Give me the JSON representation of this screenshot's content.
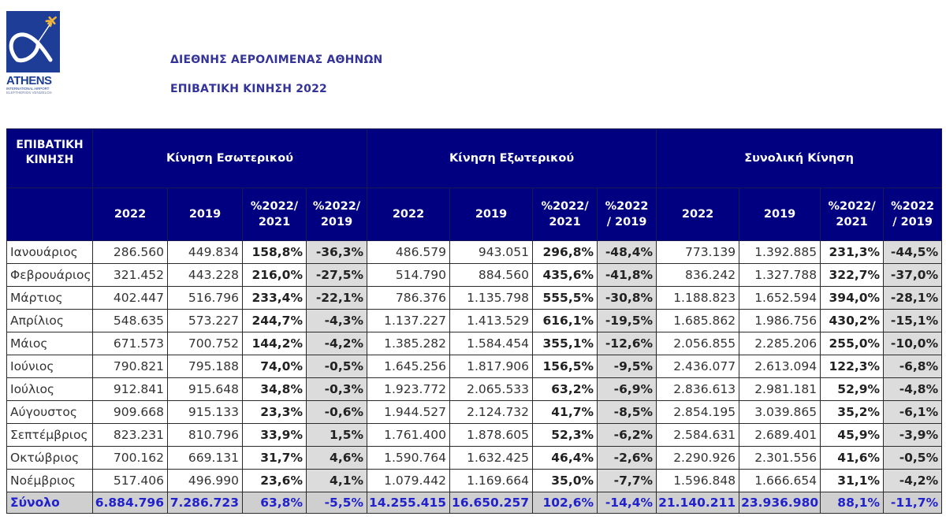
{
  "logo": {
    "name": "ATHENS",
    "line1": "INTERNATIONAL AIRPORT",
    "line2": "ELEFTHERIOS VENIZELOS",
    "brand_color": "#1d3d97",
    "accent_color": "#f0b43c"
  },
  "header": {
    "title": "ΔΙΕΘΝΗΣ ΑΕΡΟΛΙΜΕΝΑΣ ΑΘΗΝΩΝ",
    "subtitle": "ΕΠΙΒΑΤΙΚΗ ΚΙΝΗΣΗ 2022"
  },
  "table": {
    "corner_label_1": "ΕΠΙΒΑΤΙΚΗ",
    "corner_label_2": "ΚΙΝΗΣΗ",
    "groups": [
      {
        "label": "Κίνηση Εσωτερικού",
        "columns": [
          {
            "l1": "2022",
            "l2": ""
          },
          {
            "l1": "2019",
            "l2": ""
          },
          {
            "l1": "%2022/",
            "l2": "2021"
          },
          {
            "l1": "%2022/",
            "l2": "2019"
          }
        ]
      },
      {
        "label": "Κίνηση Εξωτερικού",
        "columns": [
          {
            "l1": "2022",
            "l2": ""
          },
          {
            "l1": "2019",
            "l2": ""
          },
          {
            "l1": "%2022/",
            "l2": "2021"
          },
          {
            "l1": "%2022",
            "l2": "/ 2019"
          }
        ]
      },
      {
        "label": "Συνολική Κίνηση",
        "columns": [
          {
            "l1": "2022",
            "l2": ""
          },
          {
            "l1": "2019",
            "l2": ""
          },
          {
            "l1": "%2022/",
            "l2": "2021"
          },
          {
            "l1": "%2022",
            "l2": "/ 2019"
          }
        ]
      }
    ],
    "rows": [
      {
        "month": "Ιανουάριος",
        "values": [
          "286.560",
          "449.834",
          "158,8%",
          "-36,3%",
          "486.579",
          "943.051",
          "296,8%",
          "-48,4%",
          "773.139",
          "1.392.885",
          "231,3%",
          "-44,5%"
        ]
      },
      {
        "month": "Φεβρουάριος",
        "values": [
          "321.452",
          "443.228",
          "216,0%",
          "-27,5%",
          "514.790",
          "884.560",
          "435,6%",
          "-41,8%",
          "836.242",
          "1.327.788",
          "322,7%",
          "-37,0%"
        ]
      },
      {
        "month": "Μάρτιος",
        "values": [
          "402.447",
          "516.796",
          "233,4%",
          "-22,1%",
          "786.376",
          "1.135.798",
          "555,5%",
          "-30,8%",
          "1.188.823",
          "1.652.594",
          "394,0%",
          "-28,1%"
        ]
      },
      {
        "month": "Απρίλιος",
        "values": [
          "548.635",
          "573.227",
          "244,7%",
          "-4,3%",
          "1.137.227",
          "1.413.529",
          "616,1%",
          "-19,5%",
          "1.685.862",
          "1.986.756",
          "430,2%",
          "-15,1%"
        ]
      },
      {
        "month": "Μάιος",
        "values": [
          "671.573",
          "700.752",
          "144,2%",
          "-4,2%",
          "1.385.282",
          "1.584.454",
          "355,1%",
          "-12,6%",
          "2.056.855",
          "2.285.206",
          "255,0%",
          "-10,0%"
        ]
      },
      {
        "month": "Ιούνιος",
        "values": [
          "790.821",
          "795.188",
          "74,0%",
          "-0,5%",
          "1.645.256",
          "1.817.906",
          "156,5%",
          "-9,5%",
          "2.436.077",
          "2.613.094",
          "122,3%",
          "-6,8%"
        ]
      },
      {
        "month": "Ιούλιος",
        "values": [
          "912.841",
          "915.648",
          "34,8%",
          "-0,3%",
          "1.923.772",
          "2.065.533",
          "63,2%",
          "-6,9%",
          "2.836.613",
          "2.981.181",
          "52,9%",
          "-4,8%"
        ]
      },
      {
        "month": "Αύγουστος",
        "values": [
          "909.668",
          "915.133",
          "23,3%",
          "-0,6%",
          "1.944.527",
          "2.124.732",
          "41,7%",
          "-8,5%",
          "2.854.195",
          "3.039.865",
          "35,2%",
          "-6,1%"
        ]
      },
      {
        "month": "Σεπτέμβριος",
        "values": [
          "823.231",
          "810.796",
          "33,9%",
          "1,5%",
          "1.761.400",
          "1.878.605",
          "52,3%",
          "-6,2%",
          "2.584.631",
          "2.689.401",
          "45,9%",
          "-3,9%"
        ]
      },
      {
        "month": "Οκτώβριος",
        "values": [
          "700.162",
          "669.131",
          "31,7%",
          "4,6%",
          "1.590.764",
          "1.632.425",
          "46,4%",
          "-2,6%",
          "2.290.926",
          "2.301.556",
          "41,6%",
          "-0,5%"
        ]
      },
      {
        "month": "Νοέμβριος",
        "values": [
          "517.406",
          "496.990",
          "23,6%",
          "4,1%",
          "1.079.442",
          "1.169.664",
          "35,0%",
          "-7,7%",
          "1.596.848",
          "1.666.654",
          "31,1%",
          "-4,2%"
        ]
      }
    ],
    "total": {
      "month": "Σύνολο",
      "values": [
        "6.884.796",
        "7.286.723",
        "63,8%",
        "-5,5%",
        "14.255.415",
        "16.650.257",
        "102,6%",
        "-14,4%",
        "21.140.211",
        "23.936.980",
        "88,1%",
        "-11,7%"
      ]
    },
    "colors": {
      "header_bg": "#000080",
      "header_text": "#ffffff",
      "total_text": "#2222cc",
      "total_bg": "#cfcfcf",
      "shaded_col_bg": "#dcdcdc"
    }
  }
}
